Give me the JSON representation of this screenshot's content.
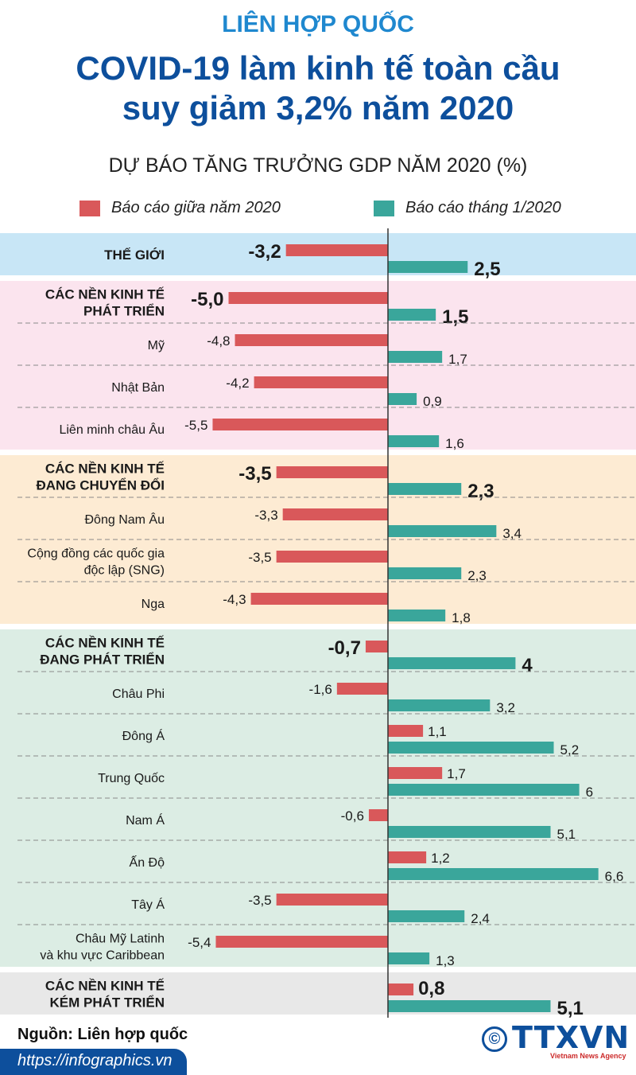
{
  "header": {
    "kicker": "LIÊN HỢP QUỐC",
    "title_line1": "COVID-19 làm kinh tế toàn cầu",
    "title_line2": "suy giảm 3,2% năm 2020"
  },
  "colors": {
    "red": "#d9585a",
    "teal": "#3aa69b",
    "world_bg": "#c8e6f6",
    "developed_bg": "#fbe4ee",
    "transition_bg": "#fdebd3",
    "developing_bg": "#dcede4",
    "least_bg": "#e8e8e8"
  },
  "footer": {
    "source": "Nguồn: Liên hợp quốc",
    "url": "https://infographics.vn",
    "logo": "TTXVN",
    "logo_sub": "Vietnam News Agency",
    "copyright_symbol": "©"
  },
  "chart_data": {
    "type": "bar",
    "orientation": "horizontal",
    "title": "DỰ BÁO TĂNG TRƯỞNG GDP NĂM 2020 (%)",
    "series": [
      {
        "name": "Báo cáo giữa năm 2020",
        "color": "#d9585a"
      },
      {
        "name": "Báo cáo tháng 1/2020",
        "color": "#3aa69b"
      }
    ],
    "groups": [
      {
        "key": "world",
        "bg": "world_bg",
        "rows": [
          {
            "label": "THẾ GIỚI",
            "mid": -3.2,
            "jan": 2.5,
            "mid_label": "-3,2",
            "jan_label": "2,5",
            "bold": true
          }
        ]
      },
      {
        "key": "developed",
        "bg": "developed_bg",
        "rows": [
          {
            "label": "CÁC NỀN KINH TẾ\nPHÁT TRIỂN",
            "mid": -5.0,
            "jan": 1.5,
            "mid_label": "-5,0",
            "jan_label": "1,5",
            "bold": true
          },
          {
            "label": "Mỹ",
            "mid": -4.8,
            "jan": 1.7,
            "mid_label": "-4,8",
            "jan_label": "1,7"
          },
          {
            "label": "Nhật Bản",
            "mid": -4.2,
            "jan": 0.9,
            "mid_label": "-4,2",
            "jan_label": "0,9"
          },
          {
            "label": "Liên minh châu Âu",
            "mid": -5.5,
            "jan": 1.6,
            "mid_label": "-5,5",
            "jan_label": "1,6"
          }
        ]
      },
      {
        "key": "transition",
        "bg": "transition_bg",
        "rows": [
          {
            "label": "CÁC NỀN KINH TẾ\nĐANG CHUYỂN ĐỔI",
            "mid": -3.5,
            "jan": 2.3,
            "mid_label": "-3,5",
            "jan_label": "2,3",
            "bold": true
          },
          {
            "label": "Đông Nam Âu",
            "mid": -3.3,
            "jan": 3.4,
            "mid_label": "-3,3",
            "jan_label": "3,4"
          },
          {
            "label": "Cộng đồng các quốc gia\nđộc lập (SNG)",
            "mid": -3.5,
            "jan": 2.3,
            "mid_label": "-3,5",
            "jan_label": "2,3"
          },
          {
            "label": "Nga",
            "mid": -4.3,
            "jan": 1.8,
            "mid_label": "-4,3",
            "jan_label": "1,8"
          }
        ]
      },
      {
        "key": "developing",
        "bg": "developing_bg",
        "rows": [
          {
            "label": "CÁC NỀN KINH TẾ\nĐANG PHÁT TRIỂN",
            "mid": -0.7,
            "jan": 4,
            "mid_label": "-0,7",
            "jan_label": "4",
            "bold": true
          },
          {
            "label": "Châu Phi",
            "mid": -1.6,
            "jan": 3.2,
            "mid_label": "-1,6",
            "jan_label": "3,2"
          },
          {
            "label": "Đông Á",
            "mid": 1.1,
            "jan": 5.2,
            "mid_label": "1,1",
            "jan_label": "5,2"
          },
          {
            "label": "Trung Quốc",
            "mid": 1.7,
            "jan": 6,
            "mid_label": "1,7",
            "jan_label": "6"
          },
          {
            "label": "Nam Á",
            "mid": -0.6,
            "jan": 5.1,
            "mid_label": "-0,6",
            "jan_label": "5,1"
          },
          {
            "label": "Ấn Độ",
            "mid": 1.2,
            "jan": 6.6,
            "mid_label": "1,2",
            "jan_label": "6,6"
          },
          {
            "label": "Tây Á",
            "mid": -3.5,
            "jan": 2.4,
            "mid_label": "-3,5",
            "jan_label": "2,4"
          },
          {
            "label": "Châu Mỹ Latinh\nvà khu vực Caribbean",
            "mid": -5.4,
            "jan": 1.3,
            "mid_label": "-5,4",
            "jan_label": "1,3"
          }
        ]
      },
      {
        "key": "least",
        "bg": "least_bg",
        "rows": [
          {
            "label": "CÁC NỀN KINH TẾ\nKÉM PHÁT TRIỂN",
            "mid": 0.8,
            "jan": 5.1,
            "mid_label": "0,8",
            "jan_label": "5,1",
            "bold": true
          }
        ]
      }
    ],
    "xlim": [
      -5.5,
      6.6
    ]
  }
}
